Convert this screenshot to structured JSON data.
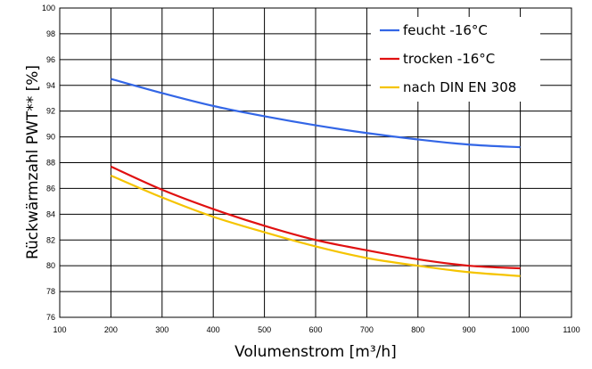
{
  "chart_data": {
    "type": "line",
    "xlabel": "Volumenstrom [m³/h]",
    "ylabel": "Rückwärmzahl PWT** [%]",
    "xlim": [
      100,
      1100
    ],
    "ylim": [
      76,
      100
    ],
    "x_ticks": [
      100,
      200,
      300,
      400,
      500,
      600,
      700,
      800,
      900,
      1000,
      1100
    ],
    "y_ticks": [
      76,
      78,
      80,
      82,
      84,
      86,
      88,
      90,
      92,
      94,
      96,
      98,
      100
    ],
    "grid": true,
    "legend_position": "top-right",
    "x": [
      200,
      300,
      400,
      500,
      600,
      700,
      800,
      900,
      1000
    ],
    "series": [
      {
        "name": "feucht -16°C",
        "color": "#3366e6",
        "values": [
          94.5,
          93.4,
          92.4,
          91.6,
          90.9,
          90.3,
          89.8,
          89.4,
          89.2
        ]
      },
      {
        "name": "trocken -16°C",
        "color": "#e01010",
        "values": [
          87.7,
          85.9,
          84.4,
          83.1,
          82.0,
          81.2,
          80.5,
          80.0,
          79.8
        ]
      },
      {
        "name": "nach DIN EN 308",
        "color": "#f5c400",
        "values": [
          87.0,
          85.3,
          83.8,
          82.6,
          81.5,
          80.6,
          80.0,
          79.5,
          79.2
        ]
      }
    ]
  }
}
